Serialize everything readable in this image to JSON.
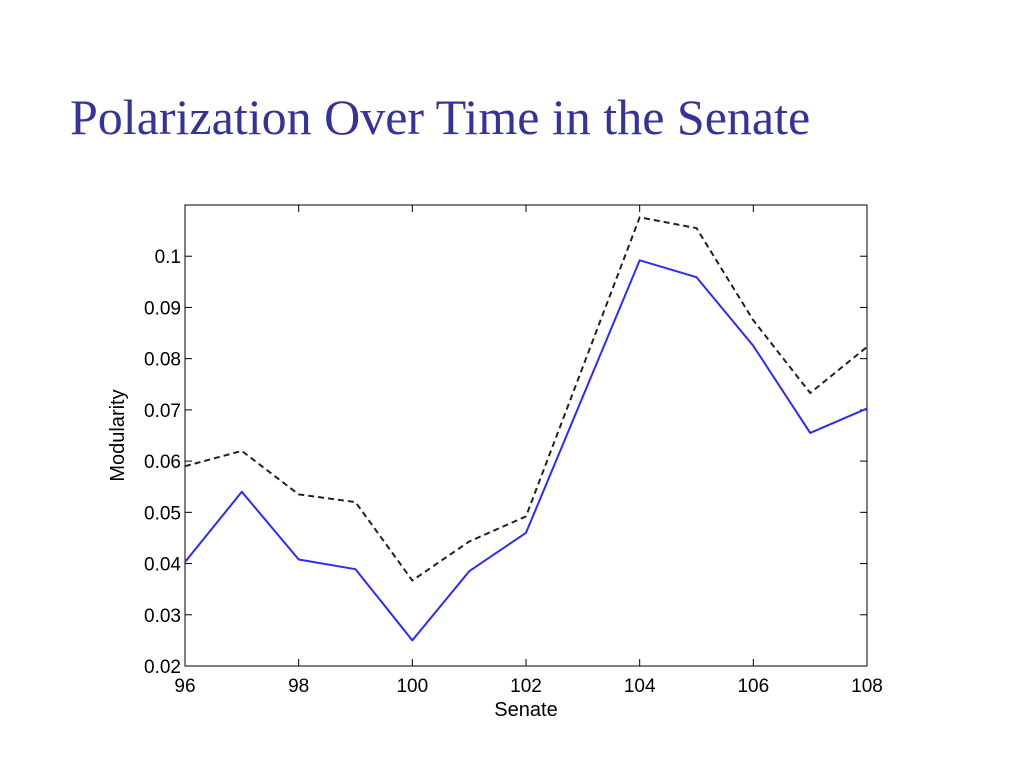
{
  "slide": {
    "title": "Polarization Over Time in the Senate"
  },
  "chart_data": {
    "type": "line",
    "title": "",
    "xlabel": "Senate",
    "ylabel": "Modularity",
    "xlim": [
      96,
      108
    ],
    "ylim": [
      0.02,
      0.11
    ],
    "x_ticks": [
      "96",
      "98",
      "100",
      "102",
      "104",
      "106",
      "108"
    ],
    "y_ticks": [
      "0.02",
      "0.03",
      "0.04",
      "0.05",
      "0.06",
      "0.07",
      "0.08",
      "0.09",
      "0.1"
    ],
    "grid": false,
    "legend": "none",
    "x": [
      96,
      97,
      98,
      99,
      100,
      101,
      102,
      104,
      105,
      106,
      107,
      108
    ],
    "series": [
      {
        "color": "#2b2bff",
        "style": "solid",
        "values": [
          0.0403,
          0.054,
          0.0408,
          0.0389,
          0.025,
          0.0385,
          0.046,
          0.0992,
          0.0959,
          0.0825,
          0.0655,
          0.0703
        ]
      },
      {
        "color": "#222222",
        "style": "dashed",
        "values": [
          0.059,
          0.062,
          0.0535,
          0.052,
          0.0367,
          0.0443,
          0.0492,
          0.1076,
          0.1055,
          0.0875,
          0.0733,
          0.0823
        ]
      }
    ]
  }
}
